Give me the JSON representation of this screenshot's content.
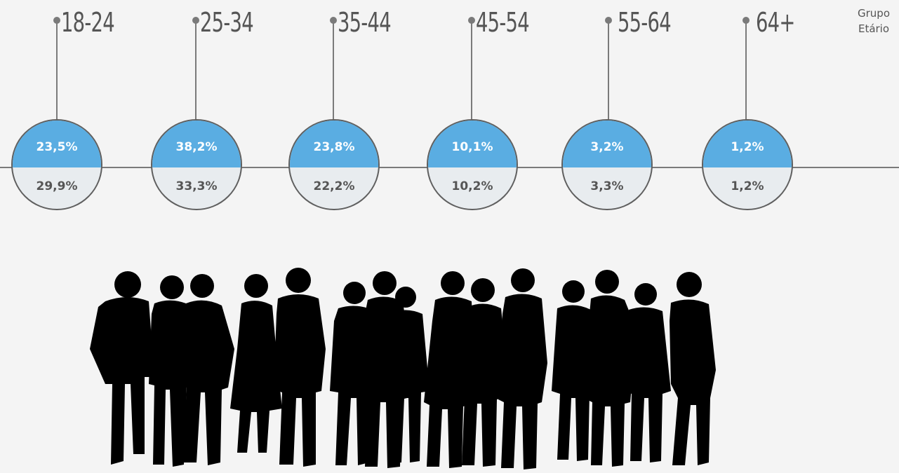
{
  "legend": {
    "line1": "Grupo",
    "line2": "Etário"
  },
  "groups": [
    {
      "label": "18-24",
      "value_top": "23,5%",
      "value_bottom": "29,9%"
    },
    {
      "label": "25-34",
      "value_top": "38,2%",
      "value_bottom": "33,3%"
    },
    {
      "label": "35-44",
      "value_top": "23,8%",
      "value_bottom": "22,2%"
    },
    {
      "label": "45-54",
      "value_top": "10,1%",
      "value_bottom": "10,2%"
    },
    {
      "label": "55-64",
      "value_top": "3,2%",
      "value_bottom": "3,3%"
    },
    {
      "label": "64+",
      "value_top": "1,2%",
      "value_bottom": "1,2%"
    }
  ],
  "colors": {
    "top_fill": "#5aade2",
    "bottom_fill": "#e8ecef",
    "line": "#7a7a7a",
    "silhouette": "#000000"
  },
  "illustration": "crowd-silhouette"
}
